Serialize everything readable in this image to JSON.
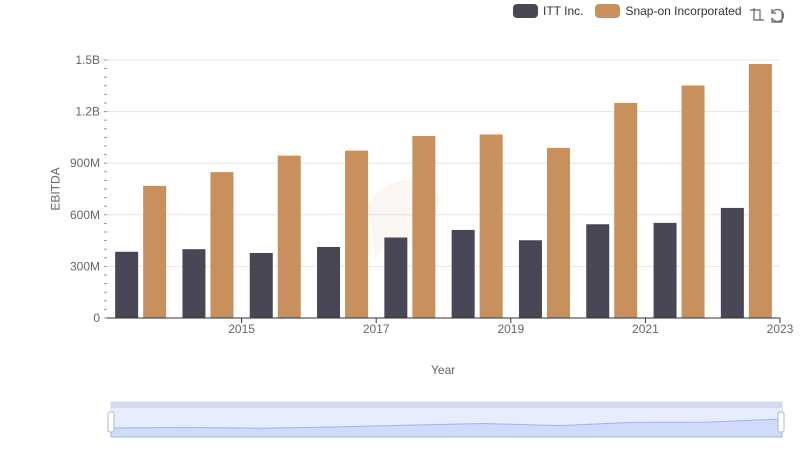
{
  "legend": [
    {
      "name": "ITT Inc.",
      "color": "#474755"
    },
    {
      "name": "Snap-on Incorporated",
      "color": "#c8905c"
    }
  ],
  "toolbox": {
    "zoom_icon": "zoom-icon",
    "reset_icon": "restore-icon"
  },
  "chart_data": {
    "type": "bar",
    "xlabel": "Year",
    "ylabel": "EBITDA",
    "x": [
      2014,
      2015,
      2016,
      2017,
      2018,
      2019,
      2020,
      2021,
      2022,
      2023
    ],
    "x_tick_labels": [
      "2015",
      "2017",
      "2019",
      "2021",
      "2023"
    ],
    "y_tick_labels": [
      "0",
      "300M",
      "600M",
      "900M",
      "1.2B",
      "1.5B"
    ],
    "ylim": [
      0,
      1500000000
    ],
    "grid": true,
    "legend_position": "top-right",
    "series": [
      {
        "name": "ITT Inc.",
        "color": "#474755",
        "values": [
          385000000,
          400000000,
          378000000,
          413000000,
          468000000,
          512000000,
          452000000,
          545000000,
          553000000,
          640000000
        ]
      },
      {
        "name": "Snap-on Incorporated",
        "color": "#c8905c",
        "values": [
          768000000,
          848000000,
          944000000,
          973000000,
          1058000000,
          1067000000,
          989000000,
          1250000000,
          1352000000,
          1477000000
        ]
      }
    ]
  }
}
